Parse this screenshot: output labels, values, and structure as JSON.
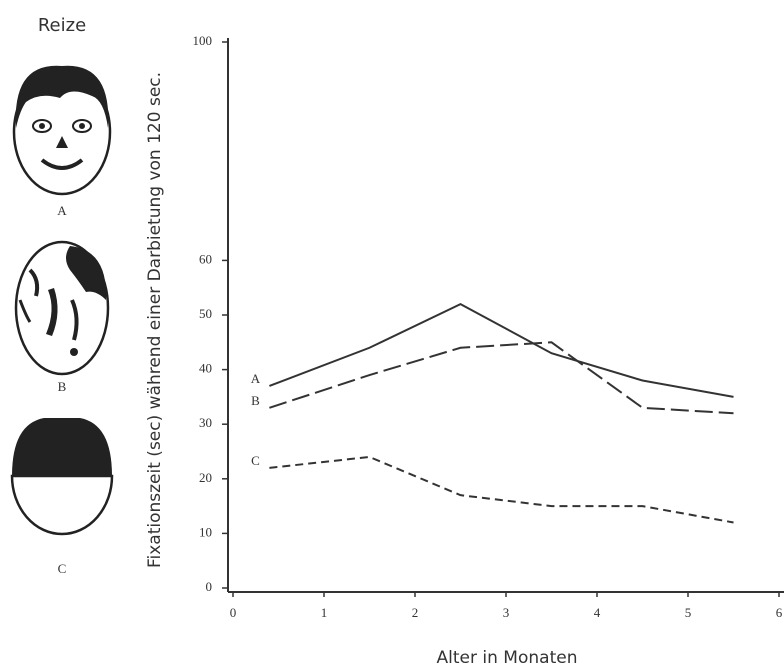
{
  "chart_data": {
    "type": "line",
    "y_label": "Fixationszeit (sec) während einer Darbietung von 120 sec.",
    "x_label": "Alter in Monaten",
    "x": [
      0.4,
      1.5,
      2.5,
      3.5,
      4.5,
      5.5
    ],
    "series": [
      {
        "name": "A",
        "color": "#333333",
        "dash": "solid",
        "values": [
          37,
          44,
          52,
          43,
          38,
          35
        ]
      },
      {
        "name": "B",
        "color": "#333333",
        "dash": "long",
        "values": [
          33,
          39,
          44,
          45,
          33,
          32
        ]
      },
      {
        "name": "C",
        "color": "#333333",
        "dash": "short",
        "values": [
          22,
          24,
          17,
          15,
          15,
          12
        ]
      }
    ],
    "xlim": [
      0,
      6
    ],
    "xticks": [
      0,
      1,
      2,
      3,
      4,
      5,
      6
    ],
    "ylim": [
      0,
      100
    ],
    "yticks": [
      0,
      10,
      20,
      30,
      40,
      50,
      60,
      100
    ],
    "grid": false
  },
  "stimuli": {
    "title": "Reize",
    "labels": [
      "A",
      "B",
      "C"
    ]
  }
}
